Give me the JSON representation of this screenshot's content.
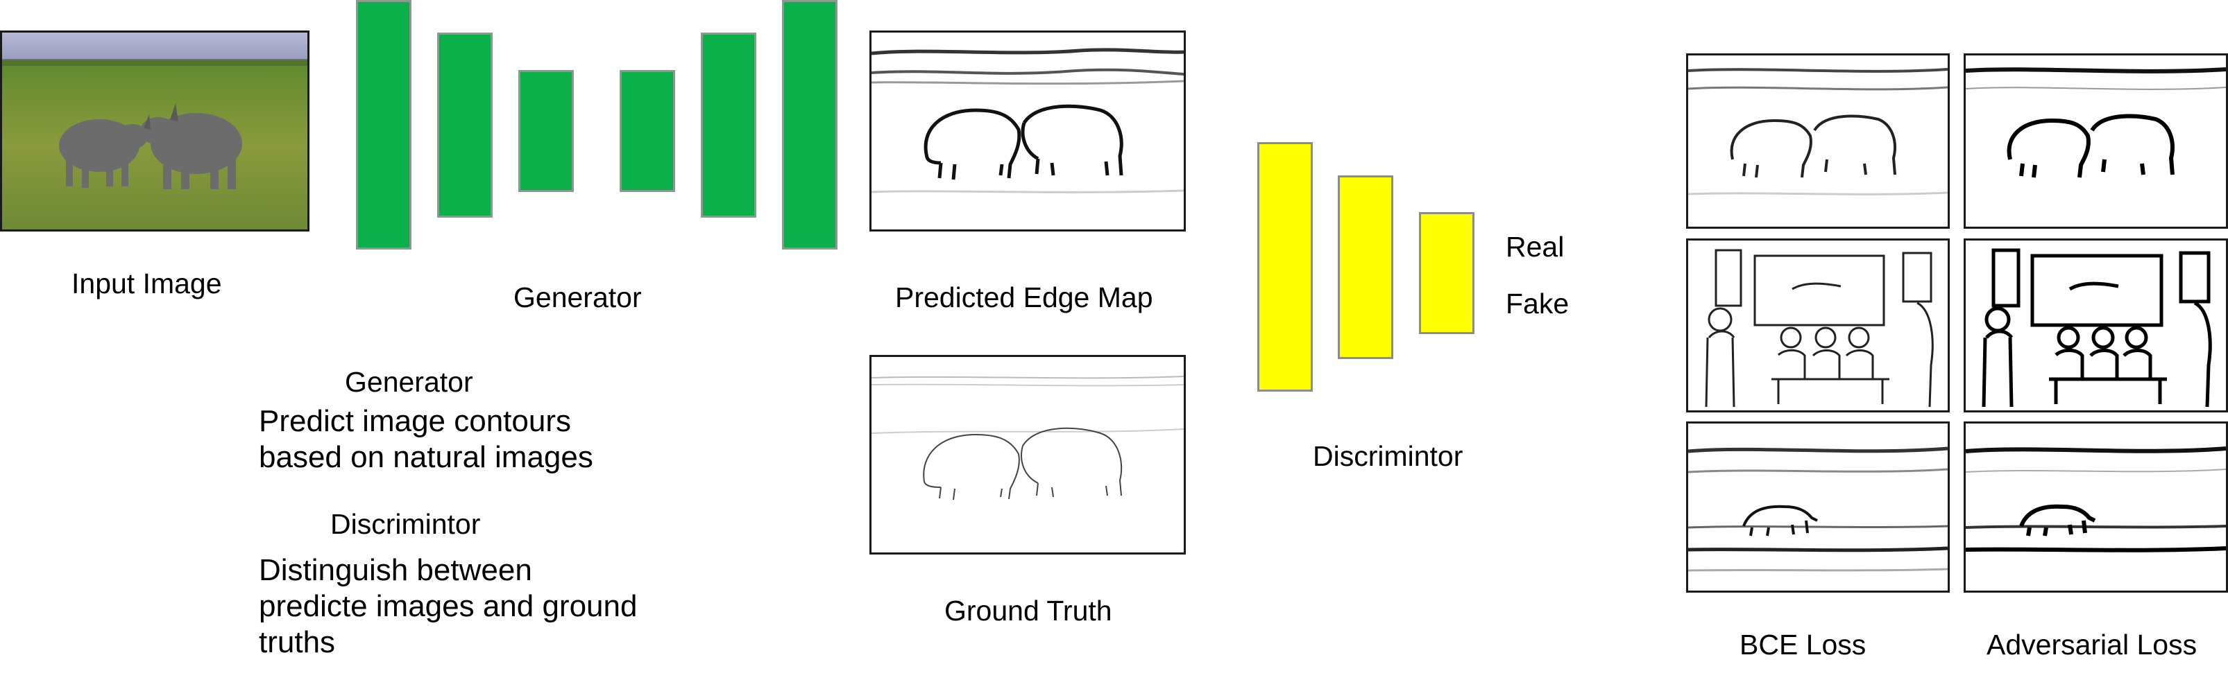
{
  "labels": {
    "input_image": "Input  Image",
    "generator": "Generator",
    "predicted_edge_map": "Predicted Edge Map",
    "ground_truth": "Ground Truth",
    "discriminator": "Discrimintor",
    "real": "Real",
    "fake": "Fake",
    "bce_loss": "BCE  Loss",
    "adversarial_loss": "Adversarial Loss"
  },
  "description": {
    "generator_title": "Generator",
    "generator_line1": "Predict image contours",
    "generator_line2": "based on natural images",
    "discriminator_title": "Discrimintor",
    "discriminator_line1": "Distinguish between",
    "discriminator_line2": "predicte images and ground",
    "discriminator_line3": "truths"
  },
  "colors": {
    "generator_block": "#0bb04a",
    "discriminator_block": "#ffff00"
  }
}
